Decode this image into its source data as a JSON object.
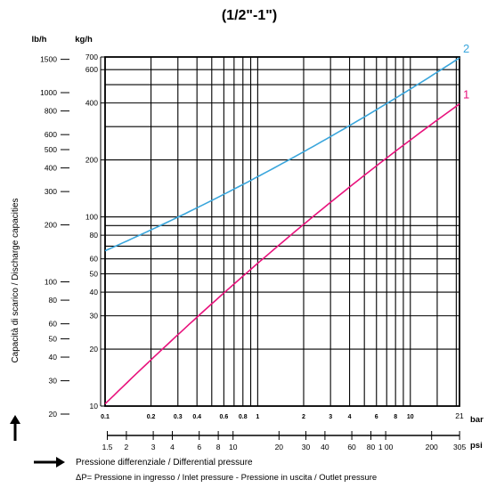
{
  "chart_data": {
    "type": "line",
    "title": "(1/2\"-1\")",
    "ylabel": "Capacità di scarico / Discharge capacities",
    "xlabel": "Pressione differenziale / Differential pressure",
    "note": "ΔP= Pressione in ingresso / Inlet pressure - Pressione in uscita / Outlet pressure",
    "xscale": "log",
    "yscale": "log",
    "xlim": [
      0.1,
      21
    ],
    "ylim": [
      10,
      700
    ],
    "x_unit": "bar",
    "x_unit_secondary": "psi",
    "y_unit": "kg/h",
    "y_unit_secondary": "lb/h",
    "grid": true,
    "x_ticks_bar": [
      "0.1",
      "0.2",
      "0.3",
      "0.4",
      "0.6",
      "0.8",
      "1",
      "2",
      "3",
      "4",
      "6",
      "8",
      "10",
      "21"
    ],
    "x_ticks_bar_values": [
      0.1,
      0.2,
      0.3,
      0.4,
      0.6,
      0.8,
      1,
      2,
      3,
      4,
      6,
      8,
      10,
      21
    ],
    "x_ticks_psi": [
      "1.5",
      "2",
      "3",
      "4",
      "6",
      "8",
      "10",
      "20",
      "30",
      "40",
      "60",
      "80",
      "1 00",
      "200",
      "305"
    ],
    "x_ticks_psi_values": [
      1.5,
      2,
      3,
      4,
      6,
      8,
      10,
      20,
      30,
      40,
      60,
      80,
      100,
      200,
      305
    ],
    "y_ticks_kgh": [
      "700",
      "600",
      "400",
      "200",
      "100",
      "80",
      "60",
      "50",
      "40",
      "30",
      "20",
      "10"
    ],
    "y_ticks_kgh_values": [
      700,
      600,
      400,
      200,
      100,
      80,
      60,
      50,
      40,
      30,
      20,
      10
    ],
    "y_ticks_lbh": [
      "1500",
      "1000",
      "800",
      "600",
      "500",
      "400",
      "300",
      "200",
      "100",
      "80",
      "60",
      "50",
      "40",
      "30",
      "20"
    ],
    "y_ticks_lbh_values": [
      1500,
      1000,
      800,
      600,
      500,
      400,
      300,
      200,
      100,
      80,
      60,
      50,
      40,
      30,
      20
    ],
    "series": [
      {
        "name": "1",
        "color": "#e8127c",
        "x": [
          0.1,
          0.3,
          1,
          3,
          10,
          21
        ],
        "y": [
          10,
          25,
          57,
          115,
          255,
          400
        ]
      },
      {
        "name": "2",
        "color": "#3aa6dc",
        "x": [
          0.1,
          0.3,
          1,
          3,
          10,
          21
        ],
        "y": [
          66,
          100,
          165,
          260,
          480,
          690
        ]
      }
    ]
  }
}
